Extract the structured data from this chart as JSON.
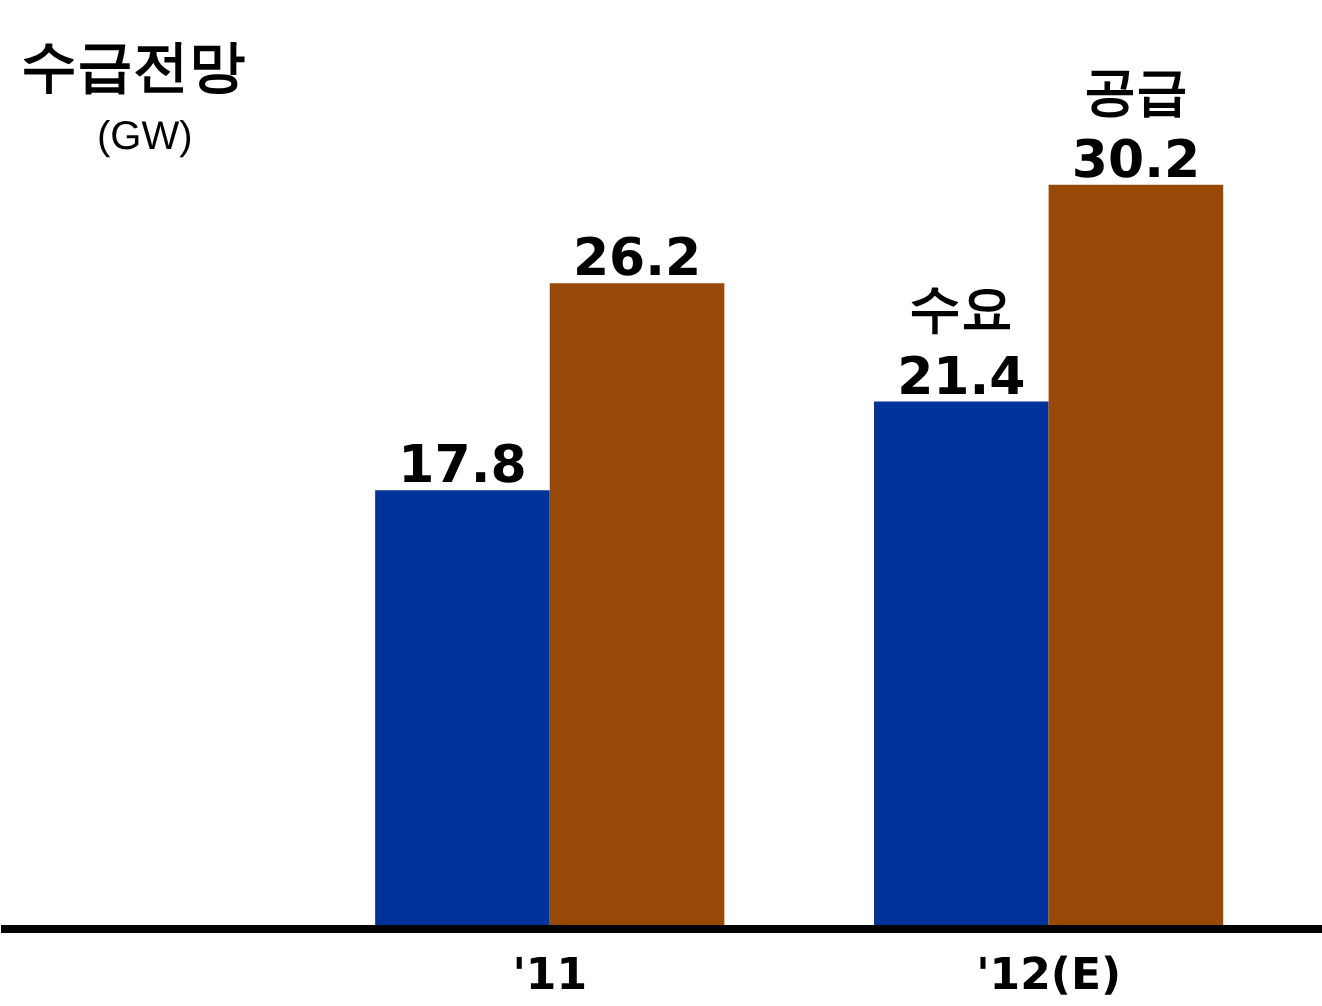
{
  "chart_data": {
    "type": "bar",
    "title": "수급전망",
    "subtitle": "(GW)",
    "categories": [
      "'11",
      "'12(E)"
    ],
    "series": [
      {
        "name": "수요",
        "color": "#003399",
        "values": [
          17.8,
          21.4
        ]
      },
      {
        "name": "공급",
        "color": "#984807",
        "values": [
          26.2,
          30.2
        ]
      }
    ],
    "data_labels": true
  }
}
